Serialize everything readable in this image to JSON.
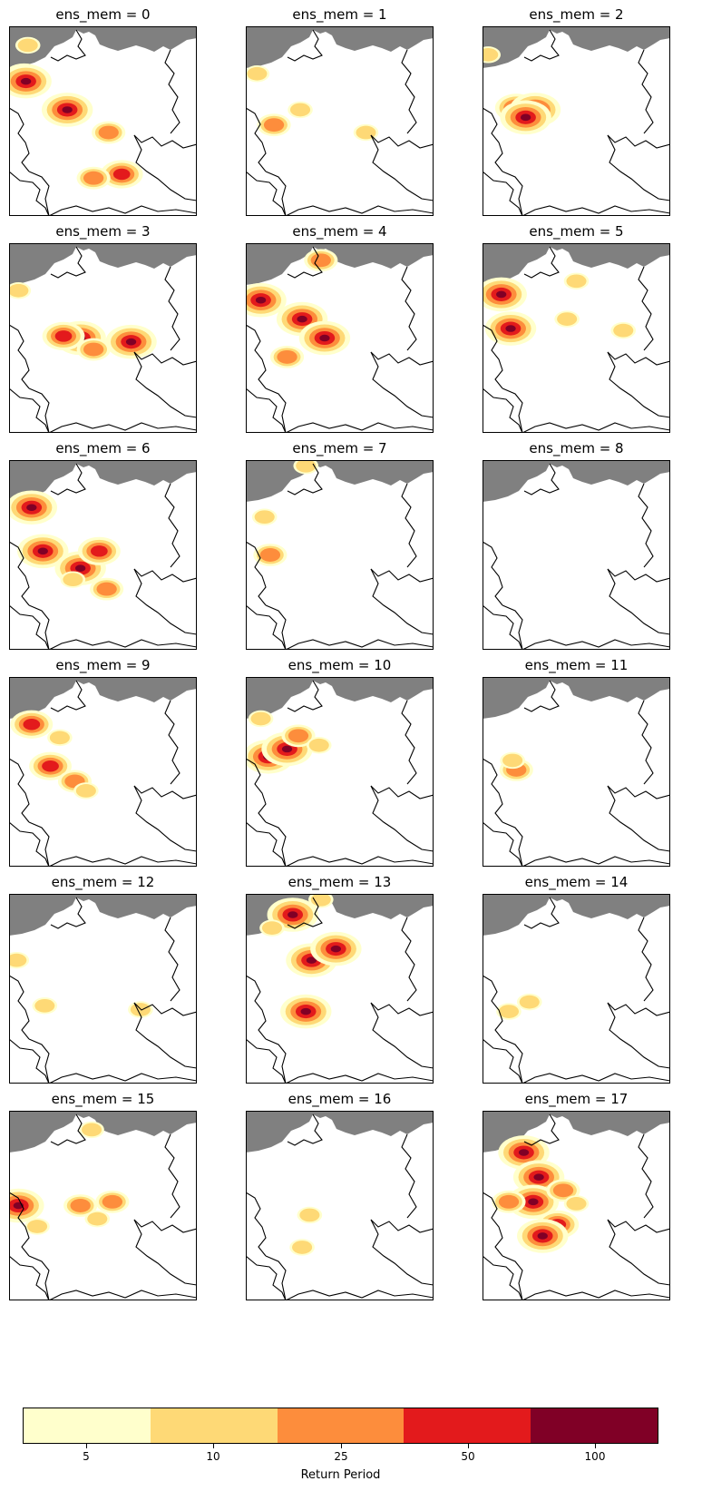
{
  "panels": [
    {
      "title": "ens_mem = 0",
      "blobs": [
        [
          8,
          27,
          3
        ],
        [
          9,
          29,
          4
        ],
        [
          31,
          44,
          4
        ],
        [
          53,
          56,
          2
        ],
        [
          60,
          78,
          3
        ],
        [
          45,
          80,
          2
        ],
        [
          10,
          10,
          1
        ]
      ]
    },
    {
      "title": "ens_mem = 1",
      "blobs": [
        [
          6,
          25,
          1
        ],
        [
          15,
          52,
          2
        ],
        [
          29,
          44,
          1
        ],
        [
          64,
          56,
          1
        ]
      ]
    },
    {
      "title": "ens_mem = 2",
      "blobs": [
        [
          3,
          15,
          1
        ],
        [
          18,
          43,
          3
        ],
        [
          28,
          44,
          4
        ],
        [
          23,
          48,
          4
        ]
      ]
    },
    {
      "title": "ens_mem = 3",
      "blobs": [
        [
          5,
          25,
          1
        ],
        [
          38,
          50,
          4
        ],
        [
          65,
          52,
          4
        ],
        [
          29,
          49,
          3
        ],
        [
          45,
          56,
          2
        ]
      ]
    },
    {
      "title": "ens_mem = 4",
      "blobs": [
        [
          30,
          40,
          4
        ],
        [
          42,
          50,
          4
        ],
        [
          8,
          30,
          4
        ],
        [
          22,
          60,
          2
        ],
        [
          40,
          9,
          2
        ]
      ]
    },
    {
      "title": "ens_mem = 5",
      "blobs": [
        [
          15,
          45,
          4
        ],
        [
          10,
          27,
          4
        ],
        [
          50,
          20,
          1
        ],
        [
          45,
          40,
          1
        ],
        [
          75,
          46,
          1
        ]
      ]
    },
    {
      "title": "ens_mem = 6",
      "blobs": [
        [
          12,
          25,
          4
        ],
        [
          18,
          48,
          4
        ],
        [
          38,
          57,
          4
        ],
        [
          48,
          48,
          3
        ],
        [
          34,
          63,
          1
        ],
        [
          52,
          68,
          2
        ]
      ]
    },
    {
      "title": "ens_mem = 7",
      "blobs": [
        [
          10,
          30,
          1
        ],
        [
          13,
          50,
          2
        ],
        [
          32,
          3,
          1
        ]
      ]
    },
    {
      "title": "ens_mem = 8",
      "blobs": []
    },
    {
      "title": "ens_mem = 9",
      "blobs": [
        [
          12,
          25,
          3
        ],
        [
          22,
          47,
          3
        ],
        [
          35,
          55,
          2
        ],
        [
          41,
          60,
          1
        ],
        [
          27,
          32,
          1
        ]
      ]
    },
    {
      "title": "ens_mem = 10",
      "blobs": [
        [
          12,
          42,
          4
        ],
        [
          22,
          38,
          4
        ],
        [
          28,
          31,
          2
        ],
        [
          39,
          36,
          1
        ],
        [
          8,
          22,
          1
        ]
      ]
    },
    {
      "title": "ens_mem = 11",
      "blobs": [
        [
          18,
          49,
          2
        ],
        [
          16,
          44,
          1
        ]
      ]
    },
    {
      "title": "ens_mem = 12",
      "blobs": [
        [
          4,
          35,
          1
        ],
        [
          70,
          61,
          1
        ],
        [
          19,
          59,
          1
        ]
      ]
    },
    {
      "title": "ens_mem = 13",
      "blobs": [
        [
          35,
          35,
          4
        ],
        [
          48,
          29,
          4
        ],
        [
          25,
          11,
          4
        ],
        [
          32,
          62,
          4
        ],
        [
          14,
          18,
          1
        ],
        [
          40,
          3,
          1
        ]
      ]
    },
    {
      "title": "ens_mem = 14",
      "blobs": [
        [
          14,
          62,
          1
        ],
        [
          25,
          57,
          1
        ]
      ]
    },
    {
      "title": "ens_mem = 15",
      "blobs": [
        [
          5,
          50,
          4
        ],
        [
          15,
          61,
          1
        ],
        [
          38,
          50,
          2
        ],
        [
          47,
          57,
          1
        ],
        [
          55,
          48,
          2
        ],
        [
          44,
          10,
          1
        ]
      ]
    },
    {
      "title": "ens_mem = 16",
      "blobs": [
        [
          30,
          72,
          1
        ],
        [
          34,
          55,
          1
        ]
      ]
    },
    {
      "title": "ens_mem = 17",
      "blobs": [
        [
          22,
          22,
          4
        ],
        [
          30,
          35,
          4
        ],
        [
          27,
          48,
          4
        ],
        [
          40,
          60,
          3
        ],
        [
          43,
          42,
          2
        ],
        [
          50,
          49,
          1
        ],
        [
          14,
          48,
          2
        ],
        [
          32,
          66,
          4
        ]
      ]
    }
  ],
  "colorbar": {
    "label": "Return Period",
    "ticks": [
      "5",
      "10",
      "25",
      "50",
      "100"
    ],
    "colors": [
      "#ffffcc",
      "#fed976",
      "#fd8d3c",
      "#e31a1c",
      "#800026"
    ]
  },
  "colors": {
    "sea": "#808080",
    "land": "#ffffff",
    "border": "#000000"
  }
}
